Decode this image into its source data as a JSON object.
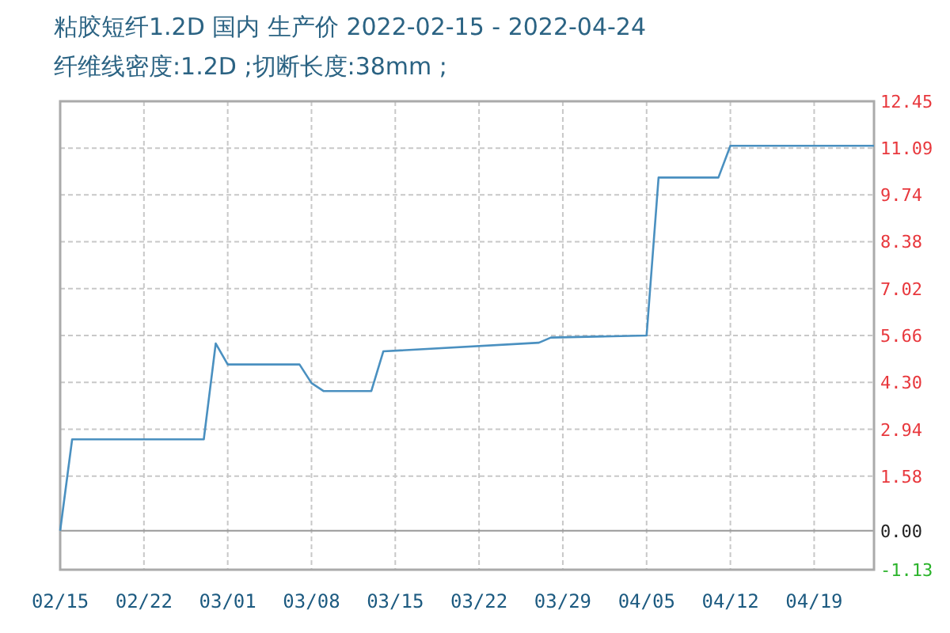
{
  "chart_data": {
    "type": "line",
    "title": "粘胶短纤1.2D 国内 生产价 2022-02-15 - 2022-04-24",
    "subtitle": "纤维线密度:1.2D ;切断长度:38mm ;",
    "x": [
      "2022-02-15",
      "2022-02-16",
      "2022-02-27",
      "2022-02-28",
      "2022-03-01",
      "2022-03-07",
      "2022-03-08",
      "2022-03-09",
      "2022-03-13",
      "2022-03-14",
      "2022-03-27",
      "2022-03-28",
      "2022-04-05",
      "2022-04-06",
      "2022-04-11",
      "2022-04-12",
      "2022-04-24"
    ],
    "series": [
      {
        "color": "#4a90c0",
        "values": [
          0.0,
          2.65,
          2.65,
          5.43,
          4.82,
          4.82,
          4.28,
          4.05,
          4.05,
          5.2,
          5.45,
          5.6,
          5.66,
          10.24,
          10.24,
          11.16,
          11.16
        ]
      }
    ],
    "xlim": [
      "2022-02-15",
      "2022-04-24"
    ],
    "xticks": [
      {
        "value": "2022-02-15",
        "label": "02/15"
      },
      {
        "value": "2022-02-22",
        "label": "02/22"
      },
      {
        "value": "2022-03-01",
        "label": "03/01"
      },
      {
        "value": "2022-03-08",
        "label": "03/08"
      },
      {
        "value": "2022-03-15",
        "label": "03/15"
      },
      {
        "value": "2022-03-22",
        "label": "03/22"
      },
      {
        "value": "2022-03-29",
        "label": "03/29"
      },
      {
        "value": "2022-04-05",
        "label": "04/05"
      },
      {
        "value": "2022-04-12",
        "label": "04/12"
      },
      {
        "value": "2022-04-19",
        "label": "04/19"
      }
    ],
    "ylim": [
      -1.13,
      12.45
    ],
    "yticks": [
      {
        "value": -1.13,
        "label": "-1.13"
      },
      {
        "value": 0,
        "label": "0.00"
      },
      1.58,
      2.94,
      {
        "value": 4.3,
        "label": "4.30"
      },
      5.66,
      7.02,
      8.38,
      9.74,
      {
        "value": 11.09,
        "label": "11.09"
      },
      {
        "value": 12.45,
        "label": "12.45"
      }
    ],
    "grid": true,
    "marker": "none",
    "line_style": "solid"
  }
}
